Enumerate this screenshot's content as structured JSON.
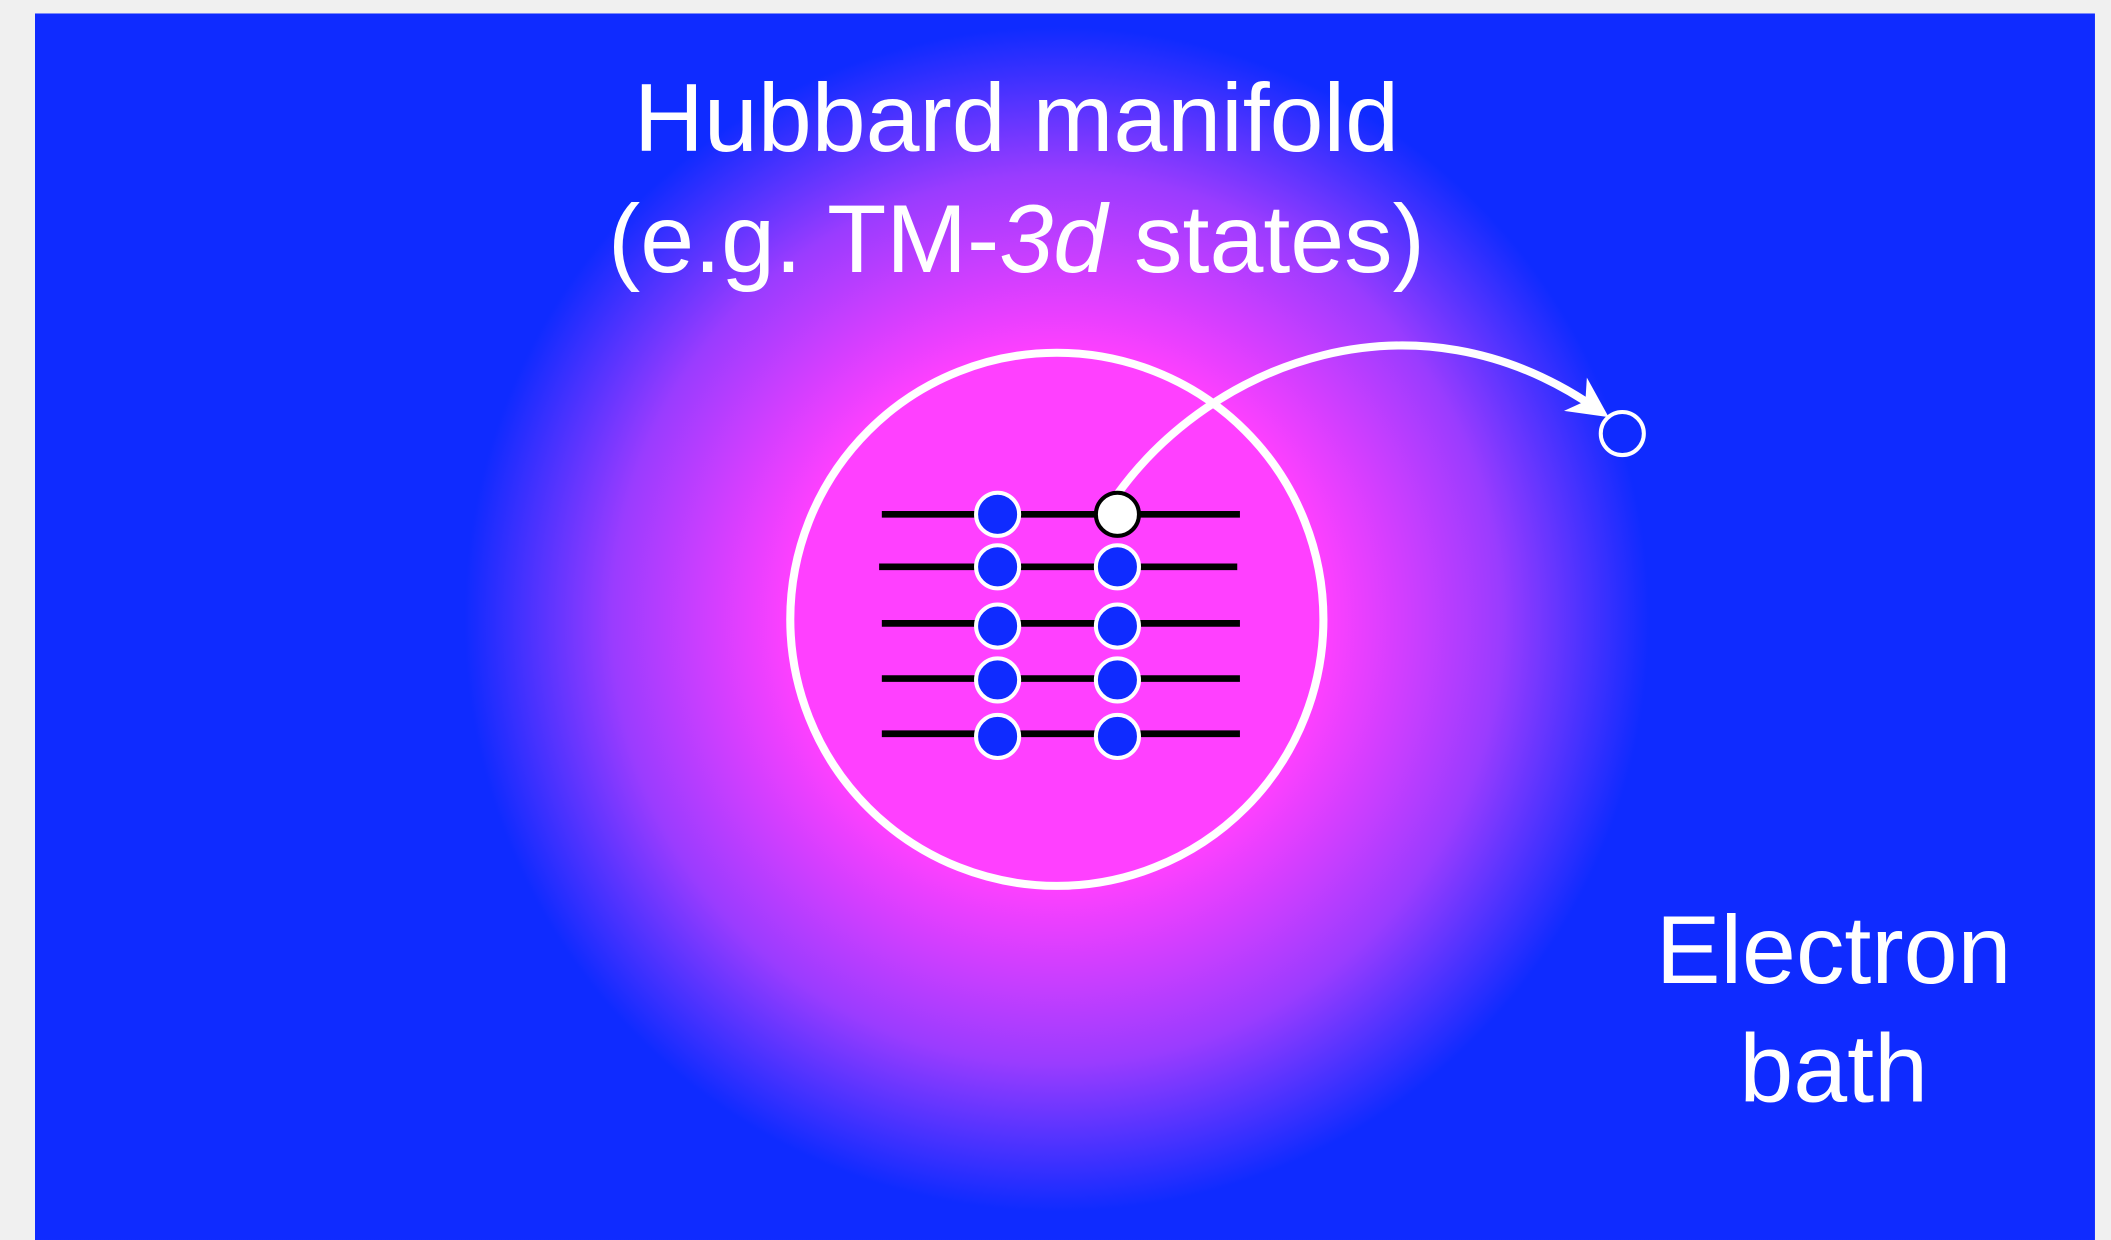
{
  "title": {
    "line1": "Hubbard manifold",
    "line2_before": "(e.g. TM-",
    "line2_italic": "3d",
    "line2_after": " states)"
  },
  "bath_label": {
    "line1": "Electron",
    "line2": "bath"
  }
}
